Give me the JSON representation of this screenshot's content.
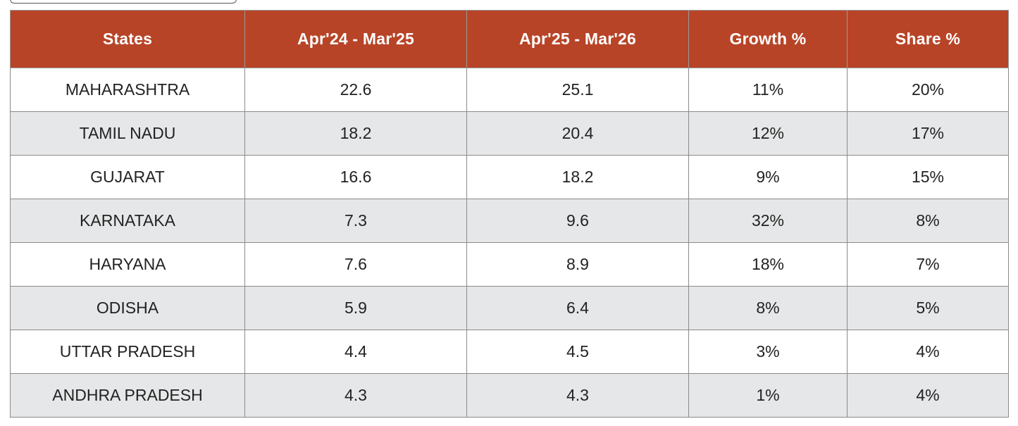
{
  "colors": {
    "header_background": "#b84427",
    "header_text": "#ffffff",
    "alt_row_background": "#e6e7e8",
    "row_background": "#ffffff",
    "border": "#8a8a8a"
  },
  "table": {
    "headers": [
      "States",
      "Apr'24 - Mar'25",
      "Apr'25 - Mar'26",
      "Growth %",
      "Share %"
    ],
    "rows": [
      [
        "MAHARASHTRA",
        "22.6",
        "25.1",
        "11%",
        "20%"
      ],
      [
        "TAMIL NADU",
        "18.2",
        "20.4",
        "12%",
        "17%"
      ],
      [
        "GUJARAT",
        "16.6",
        "18.2",
        "9%",
        "15%"
      ],
      [
        "KARNATAKA",
        "7.3",
        "9.6",
        "32%",
        "8%"
      ],
      [
        "HARYANA",
        "7.6",
        "8.9",
        "18%",
        "7%"
      ],
      [
        "ODISHA",
        "5.9",
        "6.4",
        "8%",
        "5%"
      ],
      [
        "UTTAR PRADESH",
        "4.4",
        "4.5",
        "3%",
        "4%"
      ],
      [
        "ANDHRA PRADESH",
        "4.3",
        "4.3",
        "1%",
        "4%"
      ]
    ]
  }
}
